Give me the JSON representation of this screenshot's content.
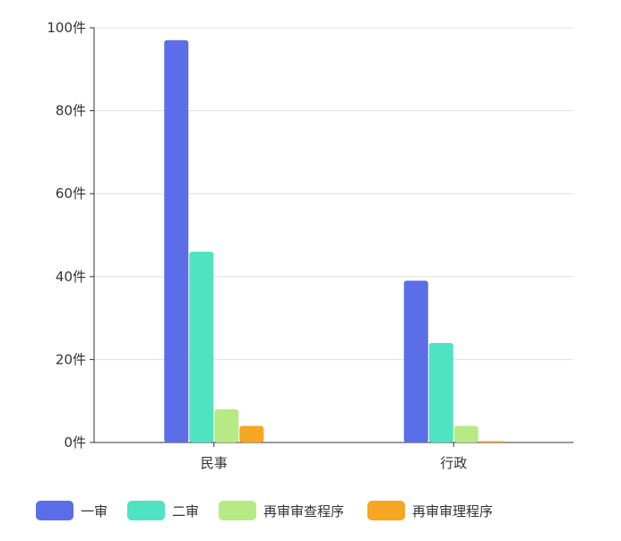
{
  "chart_data": {
    "type": "bar",
    "categories": [
      "民事",
      "行政"
    ],
    "series": [
      {
        "name": "一审",
        "values": [
          97,
          39
        ],
        "color": "#5b6ee8"
      },
      {
        "name": "二审",
        "values": [
          46,
          24
        ],
        "color": "#4fe3c1"
      },
      {
        "name": "再审审查程序",
        "values": [
          8,
          4
        ],
        "color": "#b6ea84"
      },
      {
        "name": "再审审理程序",
        "values": [
          4,
          0
        ],
        "color": "#f5a623"
      }
    ],
    "ylim": [
      0,
      100
    ],
    "yticks": [
      0,
      20,
      40,
      60,
      80,
      100
    ],
    "ytick_suffix": "件",
    "grid": true,
    "legend": "bottom"
  }
}
